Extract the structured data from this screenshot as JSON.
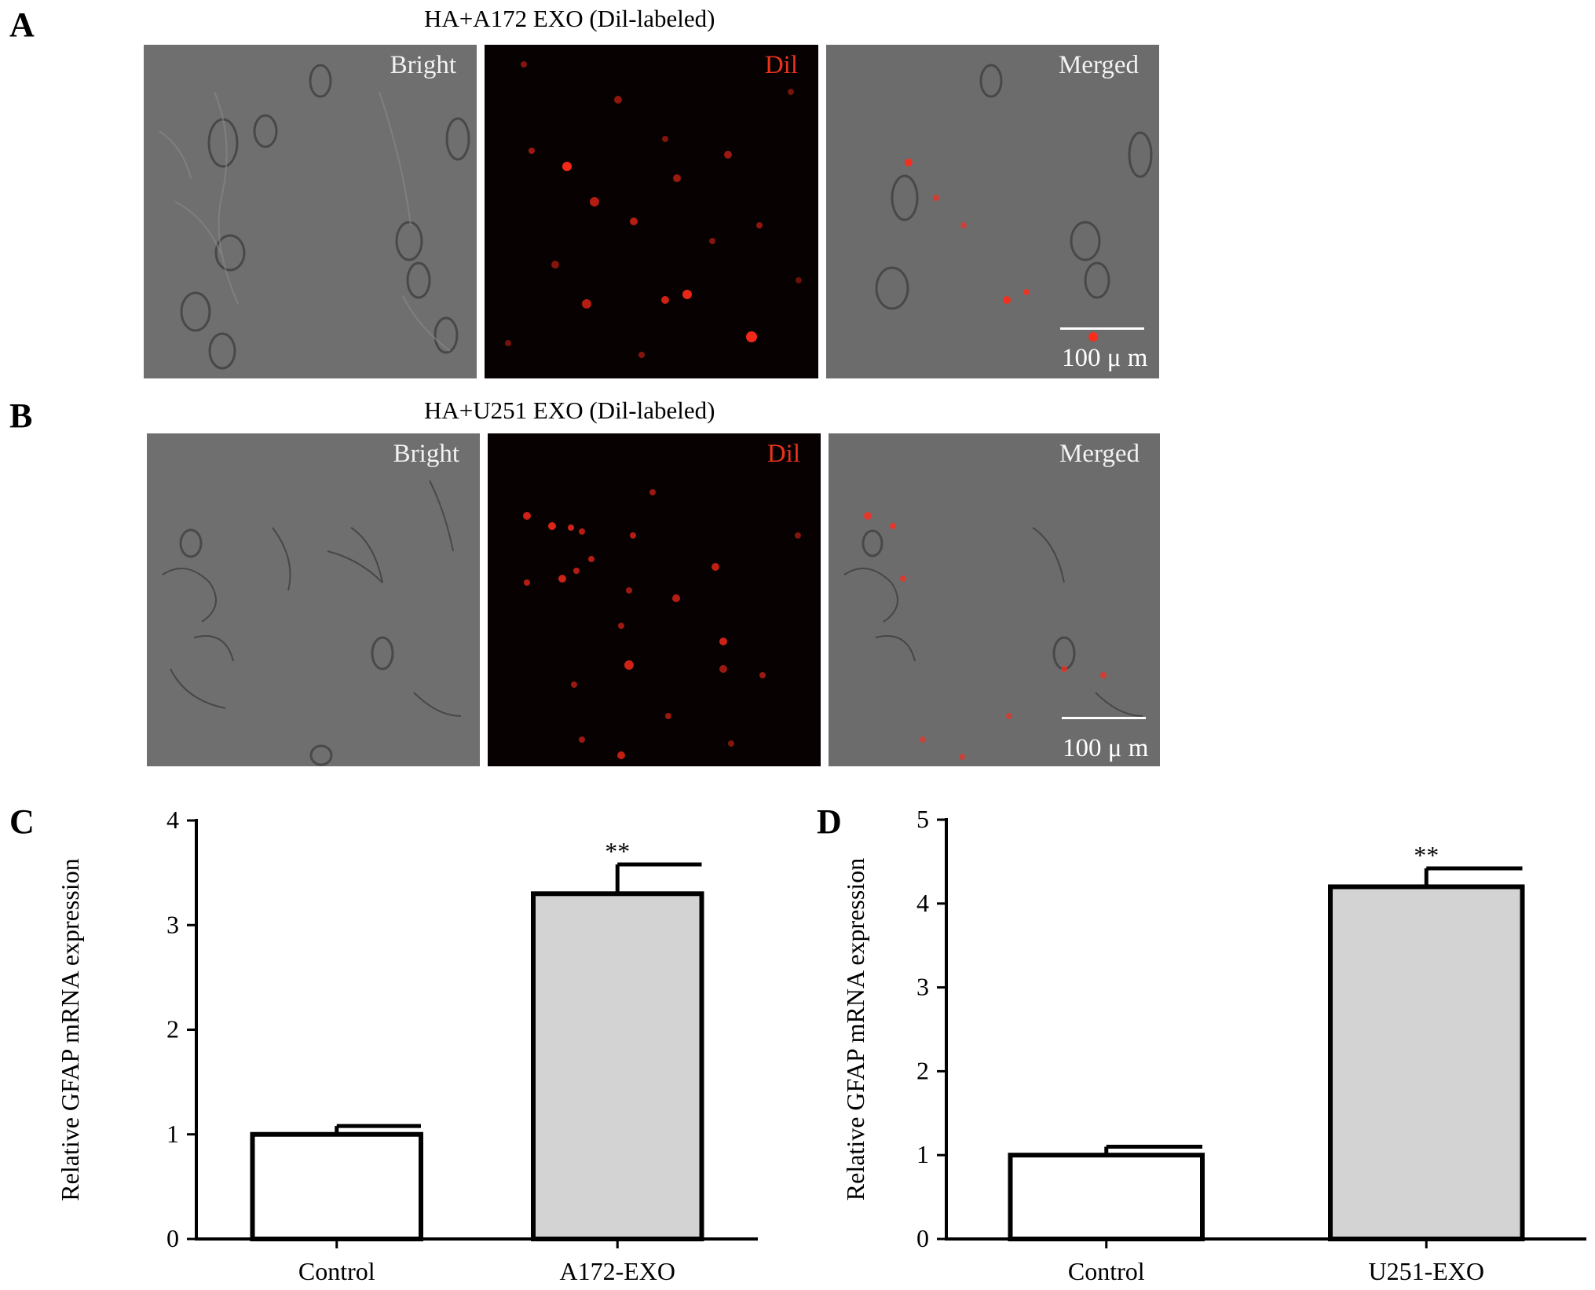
{
  "panels": {
    "A": {
      "letter": "A",
      "title": "HA+A172 EXO (Dil-labeled)",
      "images": {
        "bright": "Bright",
        "dil": "Dil",
        "merged": "Merged"
      },
      "scale_bar": "100 μ m"
    },
    "B": {
      "letter": "B",
      "title": "HA+U251 EXO (Dil-labeled)",
      "images": {
        "bright": "Bright",
        "dil": "Dil",
        "merged": "Merged"
      },
      "scale_bar": "100 μ m"
    },
    "C": {
      "letter": "C"
    },
    "D": {
      "letter": "D"
    }
  },
  "colors": {
    "bright_field": "#6f6f6f",
    "fluorescence_background": "#070101",
    "dil_red": "#ff2a1a",
    "bar_control": "#ffffff",
    "bar_exo": "#d3d3d3",
    "axis": "#000000"
  },
  "chart_data": [
    {
      "type": "bar",
      "panel": "C",
      "categories": [
        "Control",
        "A172-EXO"
      ],
      "values": [
        1.0,
        3.3
      ],
      "error": [
        0.08,
        0.28
      ],
      "significance": [
        "",
        "**"
      ],
      "ylabel": "Relative  GFAP mRNA expression",
      "xlabel": "",
      "ylim": [
        0,
        4
      ],
      "yticks": [
        0,
        1,
        2,
        3,
        4
      ],
      "bar_colors": [
        "#ffffff",
        "#d3d3d3"
      ]
    },
    {
      "type": "bar",
      "panel": "D",
      "categories": [
        "Control",
        "U251-EXO"
      ],
      "values": [
        1.0,
        4.2
      ],
      "error": [
        0.1,
        0.22
      ],
      "significance": [
        "",
        "**"
      ],
      "ylabel": "Relative  GFAP mRNA expression",
      "xlabel": "",
      "ylim": [
        0,
        5
      ],
      "yticks": [
        0,
        1,
        2,
        3,
        4,
        5
      ],
      "bar_colors": [
        "#ffffff",
        "#d3d3d3"
      ]
    }
  ]
}
